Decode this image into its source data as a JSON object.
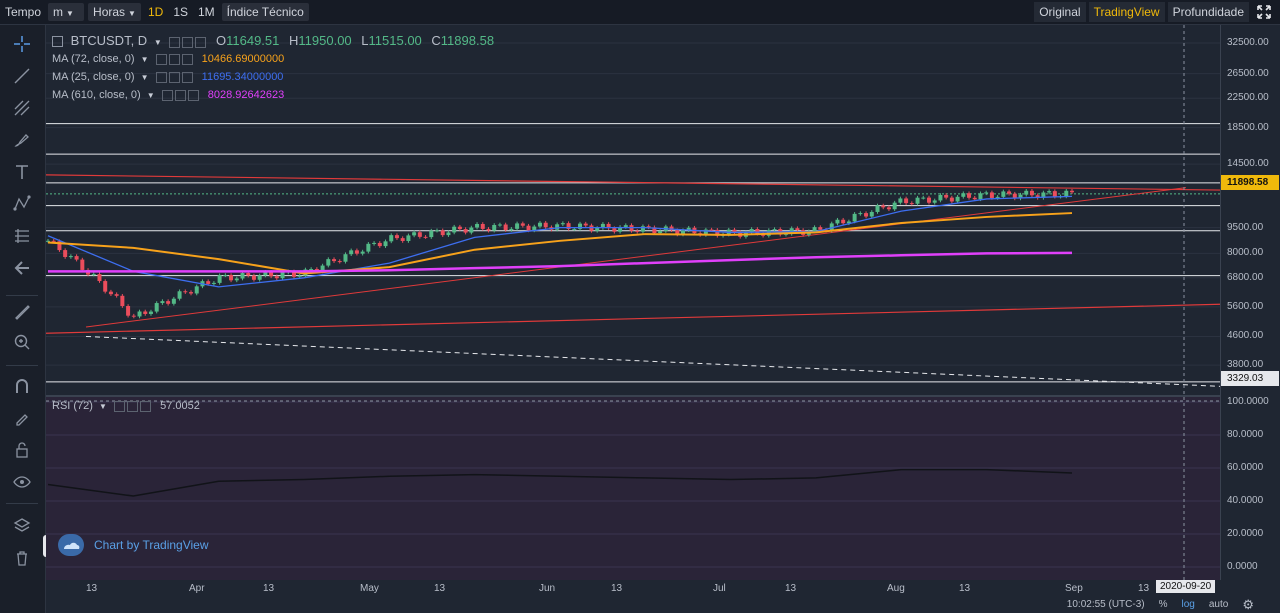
{
  "toolbar": {
    "time_label": "Tempo",
    "minute_selector": "m",
    "hours_selector": "Horas",
    "intervals": [
      "1D",
      "1S",
      "1M"
    ],
    "indicators_button": "Índice Técnico",
    "view_original": "Original",
    "view_tradingview": "TradingView",
    "view_depth": "Profundidade"
  },
  "legend": {
    "symbol": "BTCUSDT, D",
    "open_label": "O",
    "open": "11649.51",
    "high_label": "H",
    "high": "11950.00",
    "low_label": "L",
    "low": "11515.00",
    "close_label": "C",
    "close": "11898.58",
    "ma72_label": "MA (72, close, 0)",
    "ma72_value": "10466.69000000",
    "ma25_label": "MA (25, close, 0)",
    "ma25_value": "11695.34000000",
    "ma610_label": "MA (610, close, 0)",
    "ma610_value": "8028.92642623",
    "rsi_label": "RSI (72)",
    "rsi_value": "57.0052"
  },
  "price_axis": {
    "ticks": [
      "32500.00",
      "26500.00",
      "22500.00",
      "18500.00",
      "14500.00",
      "9500.00",
      "8000.00",
      "6800.00",
      "5600.00",
      "4600.00",
      "3800.00"
    ],
    "current_price": "11898.58",
    "marker_price": "3329.03"
  },
  "rsi_axis": {
    "ticks": [
      "100.0000",
      "80.0000",
      "60.0000",
      "40.0000",
      "20.0000",
      "0.0000"
    ]
  },
  "time_axis": {
    "labels": [
      "13",
      "Apr",
      "13",
      "May",
      "13",
      "Jun",
      "13",
      "Jul",
      "13",
      "Aug",
      "13",
      "Sep",
      "13"
    ],
    "cursor_date": "2020-09-20"
  },
  "footer": {
    "clock": "10:02:55 (UTC-3)",
    "percent": "%",
    "log": "log",
    "auto": "auto"
  },
  "watermark": "Chart by TradingView",
  "colors": {
    "up": "#53b987",
    "down": "#eb4d5c",
    "ma72": "#f7a21b",
    "ma25": "#3d6ef0",
    "ma610": "#e040fb",
    "accent": "#f0b90b",
    "trend": "#e03a3a"
  },
  "chart_data": {
    "type": "line",
    "title": "BTCUSDT, D",
    "x": [
      "Mar 1",
      "Mar 13",
      "Apr 1",
      "Apr 13",
      "May 1",
      "May 13",
      "Jun 1",
      "Jun 13",
      "Jul 1",
      "Jul 13",
      "Aug 1",
      "Aug 13",
      "Sep 1"
    ],
    "series": [
      {
        "name": "price",
        "values": [
          8700,
          5200,
          6800,
          7000,
          8800,
          9500,
          9600,
          9400,
          9150,
          9300,
          11300,
          11800,
          11898.58
        ]
      },
      {
        "name": "MA (25, close, 0)",
        "values": [
          9000,
          7100,
          6400,
          6800,
          7500,
          8900,
          9500,
          9500,
          9200,
          9250,
          10600,
          11500,
          11695.34
        ]
      },
      {
        "name": "MA (72, close, 0)",
        "values": [
          8600,
          8300,
          7700,
          7000,
          7300,
          8200,
          8700,
          9100,
          9050,
          9200,
          9800,
          10200,
          10466.69
        ]
      },
      {
        "name": "MA (610, close, 0)",
        "values": [
          7100,
          7100,
          7100,
          7100,
          7150,
          7250,
          7350,
          7500,
          7650,
          7800,
          7900,
          8000,
          8028.93
        ]
      },
      {
        "name": "RSI (72)",
        "values": [
          50,
          43,
          52,
          53,
          55,
          56,
          55,
          54,
          53,
          54,
          59,
          59,
          57.0052
        ]
      }
    ],
    "ylim": [
      3329,
      32500
    ],
    "rsi_ylim": [
      0,
      100
    ]
  }
}
